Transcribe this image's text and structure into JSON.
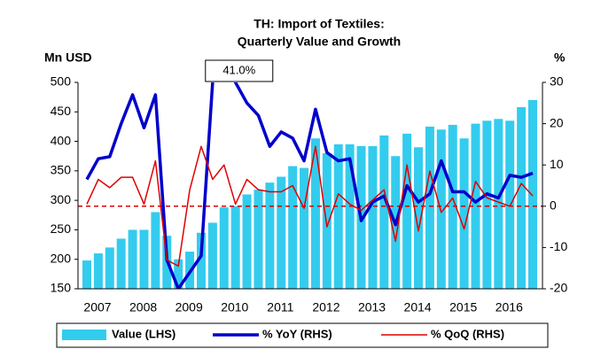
{
  "chart_data": {
    "type": "bar-line",
    "title": [
      "TH: Import of Textiles:",
      "Quarterly Value and Growth"
    ],
    "ylabel": "Mn USD",
    "y2label": "%",
    "categories": [
      "2007",
      null,
      null,
      null,
      "2008",
      null,
      null,
      null,
      "2009",
      null,
      null,
      null,
      "2010",
      null,
      null,
      null,
      "2011",
      null,
      null,
      null,
      "2012",
      null,
      null,
      null,
      "2013",
      null,
      null,
      null,
      "2014",
      null,
      null,
      null,
      "2015",
      null,
      null,
      null,
      "2016",
      null,
      null,
      null
    ],
    "series": [
      {
        "name": "Value (LHS)",
        "color": "#33ccee",
        "kind": "bar",
        "axis": "y",
        "values": [
          198,
          210,
          220,
          235,
          250,
          250,
          280,
          240,
          200,
          213,
          245,
          262,
          288,
          290,
          310,
          318,
          330,
          340,
          358,
          355,
          405,
          380,
          395,
          395,
          392,
          392,
          410,
          375,
          413,
          390,
          425,
          420,
          428,
          405,
          430,
          435,
          438,
          435,
          458,
          470
        ]
      },
      {
        "name": "% YoY (RHS)",
        "color": "#0000cc",
        "kind": "line",
        "axis": "y2",
        "values": [
          6.5,
          11.5,
          12,
          20,
          27,
          19,
          27,
          -13,
          -20,
          -16,
          -12,
          30,
          41,
          30,
          25,
          22,
          14.5,
          18,
          16.5,
          11,
          23.5,
          13,
          11,
          11.5,
          -3.5,
          1,
          2.5,
          -4.5,
          5,
          1,
          3,
          11,
          3.5,
          3.5,
          1,
          3,
          2,
          7.5,
          7,
          8
        ]
      },
      {
        "name": "% QoQ (RHS)",
        "color": "#e00000",
        "kind": "line",
        "axis": "y2",
        "values": [
          0.5,
          6.5,
          4.5,
          7,
          7,
          0.5,
          11,
          -13,
          -14.5,
          4,
          14.5,
          6.5,
          10,
          0.5,
          6.5,
          4,
          3.5,
          3.5,
          5,
          -0.5,
          14.5,
          -5,
          3,
          0.5,
          -1,
          1.5,
          4,
          -8.5,
          10,
          -6,
          8.5,
          -1.5,
          2,
          -5.5,
          6,
          2,
          1,
          0,
          5.5,
          2.5
        ]
      }
    ],
    "annotations": [
      {
        "text": "41.0%",
        "series": 1,
        "index": 12
      }
    ],
    "y2_reference": 0,
    "ylim": [
      150,
      500
    ],
    "yticks": [
      150,
      200,
      250,
      300,
      350,
      400,
      450,
      500
    ],
    "y2lim": [
      -20,
      30
    ],
    "y2ticks": [
      -20,
      -10,
      0,
      10,
      20,
      30
    ],
    "legend": "bottom"
  }
}
